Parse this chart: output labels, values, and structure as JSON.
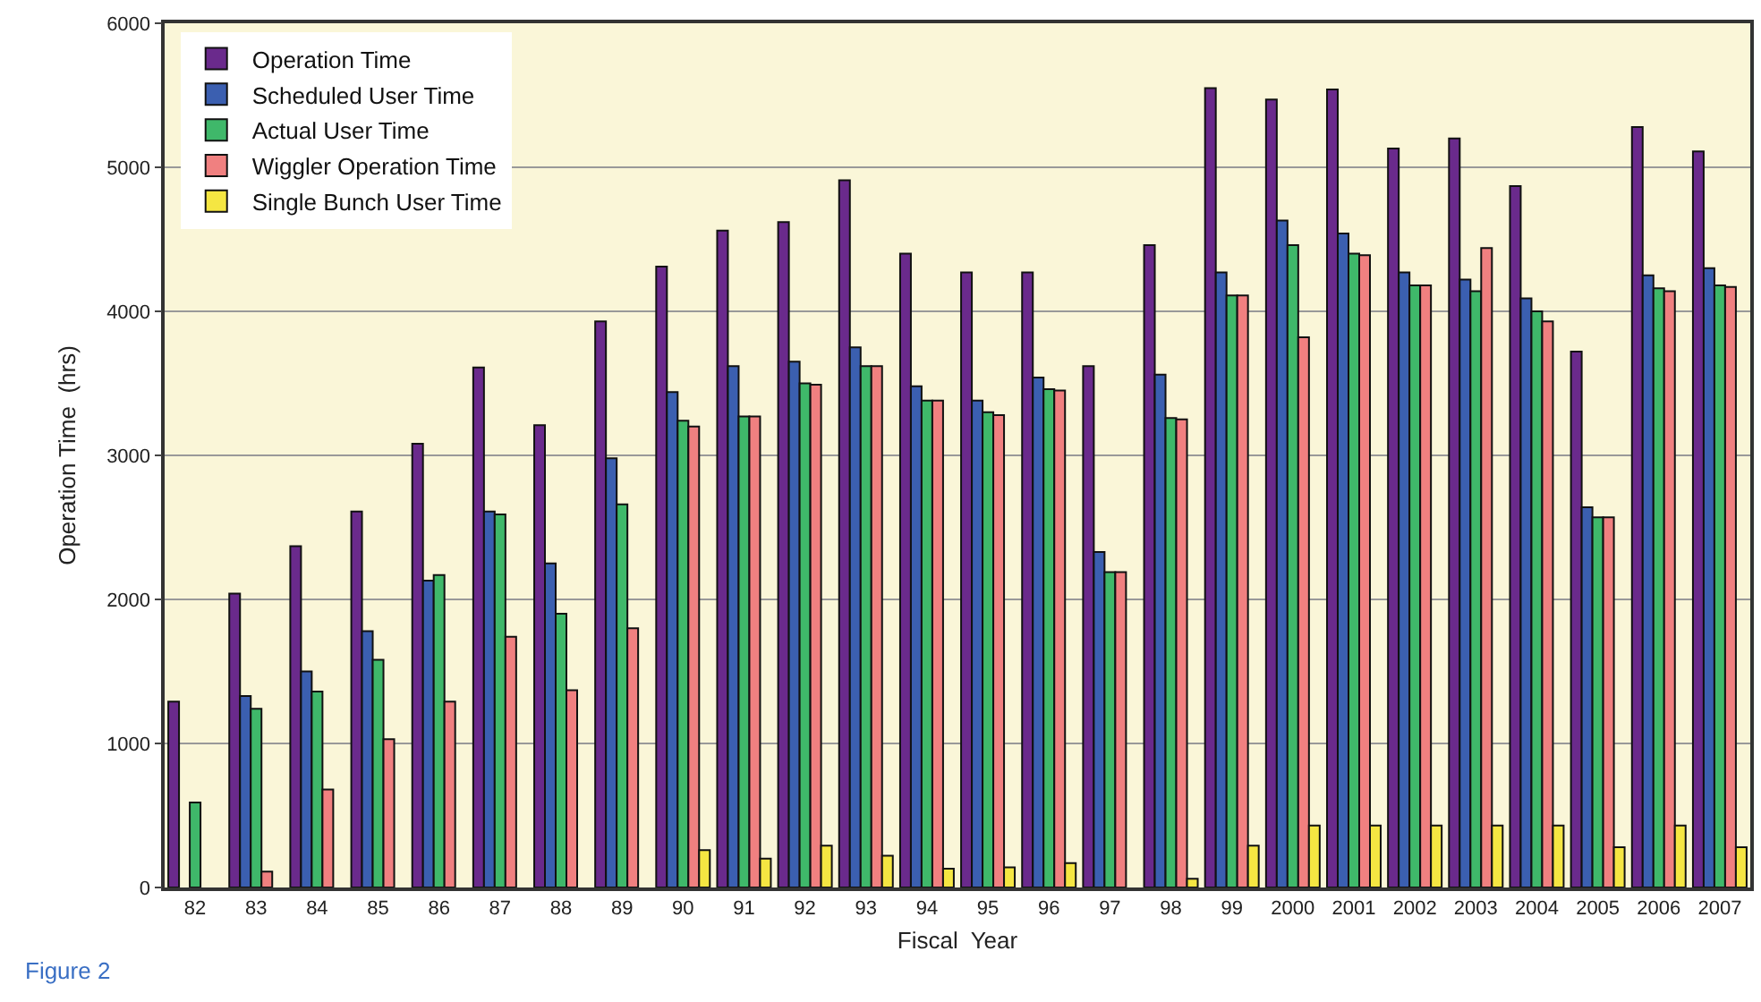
{
  "chart_data": {
    "type": "bar",
    "xlabel": "Fiscal  Year",
    "ylabel": "Operation Time  (hrs)",
    "categories": [
      "82",
      "83",
      "84",
      "85",
      "86",
      "87",
      "88",
      "89",
      "90",
      "91",
      "92",
      "93",
      "94",
      "95",
      "96",
      "97",
      "98",
      "99",
      "2000",
      "2001",
      "2002",
      "2003",
      "2004",
      "2005",
      "2006",
      "2007"
    ],
    "series": [
      {
        "name": "Operation Time",
        "color": "#6a2a8c",
        "values": [
          1290,
          2040,
          2370,
          2610,
          3080,
          3610,
          3210,
          3930,
          4310,
          4560,
          4620,
          4910,
          4400,
          4270,
          4270,
          3620,
          4460,
          5550,
          5470,
          5540,
          5130,
          5200,
          4870,
          3720,
          5280,
          5110
        ]
      },
      {
        "name": "Scheduled User Time",
        "color": "#3b5fb0",
        "values": [
          null,
          1330,
          1500,
          1780,
          2130,
          2610,
          2250,
          2980,
          3440,
          3620,
          3650,
          3750,
          3480,
          3380,
          3540,
          2330,
          3560,
          4270,
          4630,
          4540,
          4270,
          4220,
          4090,
          2640,
          4250,
          4300
        ]
      },
      {
        "name": "Actual User Time",
        "color": "#3fb86a",
        "values": [
          590,
          1240,
          1360,
          1580,
          2170,
          2590,
          1900,
          2660,
          3240,
          3270,
          3500,
          3620,
          3380,
          3300,
          3460,
          2190,
          3260,
          4110,
          4460,
          4400,
          4180,
          4140,
          4000,
          2570,
          4160,
          4180
        ]
      },
      {
        "name": "Wiggler Operation Time",
        "color": "#f08080",
        "values": [
          null,
          110,
          680,
          1030,
          1290,
          1740,
          1370,
          1800,
          3200,
          3270,
          3490,
          3620,
          3380,
          3280,
          3450,
          2190,
          3250,
          4110,
          3820,
          4390,
          4180,
          4440,
          3930,
          2570,
          4140,
          4170
        ]
      },
      {
        "name": "Single Bunch User Time",
        "color": "#f5e642",
        "values": [
          null,
          null,
          null,
          null,
          null,
          null,
          null,
          null,
          260,
          200,
          290,
          220,
          130,
          140,
          170,
          null,
          60,
          290,
          430,
          430,
          430,
          430,
          430,
          280,
          430,
          280
        ]
      }
    ],
    "ylim": [
      0,
      6000
    ],
    "yticks": [
      0,
      1000,
      2000,
      3000,
      4000,
      5000,
      6000
    ],
    "grid": "y",
    "legend": "top left",
    "annotations": [
      "Figure 2"
    ]
  }
}
